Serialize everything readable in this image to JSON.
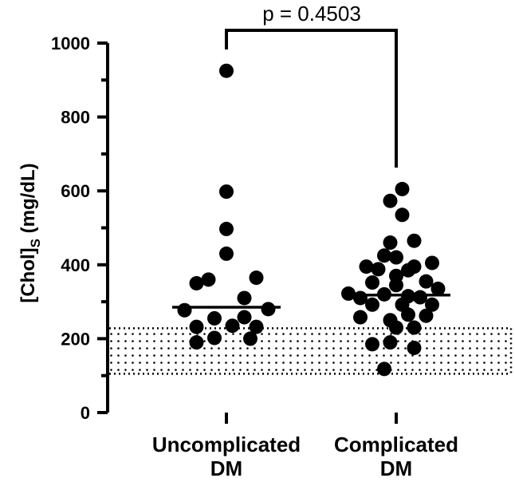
{
  "chart_data": {
    "type": "scatter",
    "ylabel": {
      "main": "[Chol]",
      "sub": "S",
      "unit": " (mg/dL)"
    },
    "ylim": [
      0,
      1000
    ],
    "yticks": [
      0,
      200,
      400,
      600,
      800,
      1000
    ],
    "y_minor_step": 100,
    "categories": [
      {
        "line1": "Uncomplicated",
        "line2": "DM"
      },
      {
        "line1": "Complicated",
        "line2": "DM"
      }
    ],
    "median_line_color": "#000000",
    "point_color": "#000000",
    "reference_band": {
      "low": 105,
      "high": 228,
      "pattern": "dotted"
    },
    "annotation": {
      "text": "p = 0.4503",
      "bracket": true
    },
    "groups": [
      {
        "median": 285,
        "points": [
          {
            "offset": 0,
            "y": 925
          },
          {
            "offset": 0,
            "y": 598
          },
          {
            "offset": 0,
            "y": 497
          },
          {
            "offset": 0,
            "y": 430
          },
          {
            "offset": 2.5,
            "y": 365
          },
          {
            "offset": -1.5,
            "y": 360
          },
          {
            "offset": -2.5,
            "y": 350
          },
          {
            "offset": 3.5,
            "y": 280
          },
          {
            "offset": -3.5,
            "y": 277
          },
          {
            "offset": 1.5,
            "y": 310
          },
          {
            "offset": -1,
            "y": 255
          },
          {
            "offset": 1.5,
            "y": 258
          },
          {
            "offset": -2.5,
            "y": 232
          },
          {
            "offset": 0.5,
            "y": 235
          },
          {
            "offset": 2.5,
            "y": 232
          },
          {
            "offset": -2.5,
            "y": 190
          },
          {
            "offset": -1,
            "y": 202
          },
          {
            "offset": 2,
            "y": 200
          }
        ]
      },
      {
        "median": 318,
        "points": [
          {
            "offset": 0.5,
            "y": 605
          },
          {
            "offset": -0.5,
            "y": 573
          },
          {
            "offset": 0.5,
            "y": 535
          },
          {
            "offset": -0.5,
            "y": 460
          },
          {
            "offset": 1.5,
            "y": 465
          },
          {
            "offset": -2.5,
            "y": 395
          },
          {
            "offset": -1.5,
            "y": 388
          },
          {
            "offset": 0,
            "y": 420
          },
          {
            "offset": 1.5,
            "y": 395
          },
          {
            "offset": 3,
            "y": 405
          },
          {
            "offset": -1,
            "y": 425
          },
          {
            "offset": 0,
            "y": 370
          },
          {
            "offset": 1,
            "y": 385
          },
          {
            "offset": -2,
            "y": 352
          },
          {
            "offset": 2.5,
            "y": 355
          },
          {
            "offset": -4,
            "y": 322
          },
          {
            "offset": -3,
            "y": 310
          },
          {
            "offset": -1,
            "y": 320
          },
          {
            "offset": 0,
            "y": 345
          },
          {
            "offset": 1,
            "y": 315
          },
          {
            "offset": 2,
            "y": 312
          },
          {
            "offset": 3.5,
            "y": 335
          },
          {
            "offset": -2,
            "y": 292
          },
          {
            "offset": 0.5,
            "y": 292
          },
          {
            "offset": 3,
            "y": 292
          },
          {
            "offset": -3,
            "y": 258
          },
          {
            "offset": -0.5,
            "y": 250
          },
          {
            "offset": 1,
            "y": 265
          },
          {
            "offset": 2.5,
            "y": 262
          },
          {
            "offset": 0,
            "y": 230
          },
          {
            "offset": 1.5,
            "y": 230
          },
          {
            "offset": -2,
            "y": 185
          },
          {
            "offset": -0.5,
            "y": 190
          },
          {
            "offset": 1.5,
            "y": 175
          },
          {
            "offset": -1,
            "y": 118
          }
        ]
      }
    ]
  }
}
